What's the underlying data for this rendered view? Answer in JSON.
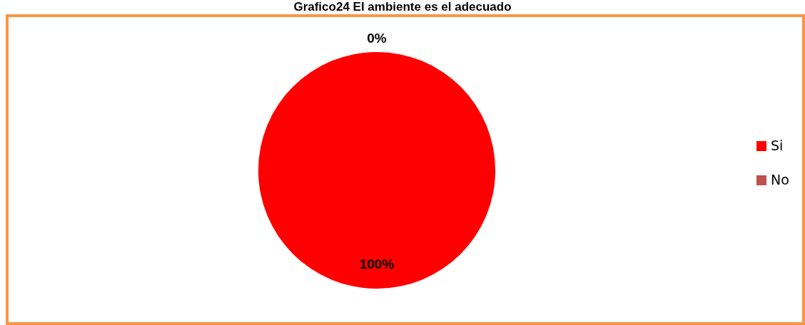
{
  "chart_data": {
    "type": "pie",
    "title": "Grafico24 El ambiente es el adecuado",
    "categories": [
      "Si",
      "No"
    ],
    "values": [
      100,
      0
    ],
    "colors": [
      "#ff0000",
      "#c0504d"
    ],
    "value_labels": [
      "100%",
      "0%"
    ],
    "legend": "right"
  }
}
